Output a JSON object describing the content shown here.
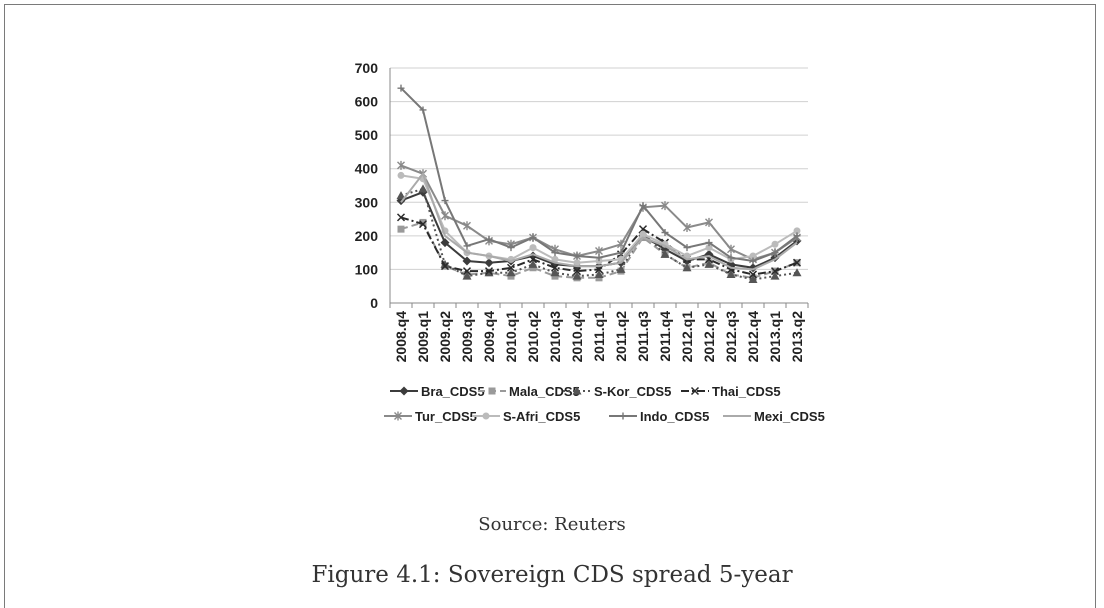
{
  "figure": {
    "source": "Source: Reuters",
    "caption": "Figure 4.1: Sovereign CDS spread 5-year"
  },
  "chart_data": {
    "type": "line",
    "title": "",
    "xlabel": "",
    "ylabel": "",
    "ylim": [
      0,
      700
    ],
    "yticks": [
      0,
      100,
      200,
      300,
      400,
      500,
      600,
      700
    ],
    "grid": true,
    "legend_position": "bottom",
    "categories": [
      "2008.q4",
      "2009.q1",
      "2009.q2",
      "2009.q3",
      "2009.q4",
      "2010.q1",
      "2010.q2",
      "2010.q3",
      "2010.q4",
      "2011.q1",
      "2011.q2",
      "2011.q3",
      "2011.q4",
      "2012.q1",
      "2012.q2",
      "2012.q3",
      "2012.q4",
      "2013.q1",
      "2013.q2"
    ],
    "series": [
      {
        "name": "Bra_CDS5",
        "color": "#3c3c3c",
        "dash": "",
        "marker": "diamond",
        "values": [
          305,
          330,
          180,
          125,
          120,
          125,
          140,
          115,
          110,
          110,
          120,
          200,
          160,
          125,
          145,
          115,
          105,
          135,
          185
        ]
      },
      {
        "name": "Mala_CDS5",
        "color": "#9a9a9a",
        "dash": "7,4",
        "marker": "square",
        "values": [
          220,
          240,
          110,
          85,
          90,
          80,
          105,
          80,
          75,
          75,
          95,
          195,
          145,
          105,
          120,
          85,
          75,
          95,
          120
        ]
      },
      {
        "name": "S-Kor_CDS5",
        "color": "#555555",
        "dash": "2,3",
        "marker": "triangle",
        "values": [
          320,
          340,
          115,
          80,
          90,
          90,
          115,
          90,
          80,
          85,
          100,
          210,
          145,
          105,
          115,
          85,
          70,
          80,
          90
        ]
      },
      {
        "name": "Thai_CDS5",
        "color": "#2a2a2a",
        "dash": "8,3,2,3",
        "marker": "x",
        "values": [
          255,
          235,
          110,
          95,
          95,
          105,
          130,
          105,
          95,
          100,
          145,
          220,
          180,
          130,
          130,
          100,
          85,
          95,
          120
        ]
      },
      {
        "name": "Tur_CDS5",
        "color": "#8a8a8a",
        "dash": "",
        "marker": "star",
        "values": [
          410,
          385,
          260,
          230,
          185,
          175,
          195,
          160,
          140,
          155,
          175,
          285,
          290,
          225,
          240,
          160,
          130,
          150,
          195
        ]
      },
      {
        "name": "S-Afri_CDS5",
        "color": "#bbbbbb",
        "dash": "",
        "marker": "circle",
        "values": [
          380,
          370,
          215,
          150,
          140,
          130,
          165,
          130,
          120,
          125,
          130,
          205,
          175,
          140,
          165,
          130,
          140,
          175,
          215
        ]
      },
      {
        "name": "Indo_CDS5",
        "color": "#777777",
        "dash": "",
        "marker": "plus",
        "values": [
          640,
          575,
          305,
          170,
          190,
          165,
          195,
          150,
          140,
          135,
          150,
          290,
          210,
          165,
          180,
          135,
          125,
          150,
          200
        ]
      },
      {
        "name": "Mexi_CDS5",
        "color": "#aaaaaa",
        "dash": "",
        "marker": "none",
        "values": [
          300,
          385,
          200,
          150,
          140,
          125,
          145,
          120,
          110,
          110,
          120,
          195,
          170,
          130,
          140,
          105,
          100,
          130,
          180
        ]
      }
    ]
  }
}
